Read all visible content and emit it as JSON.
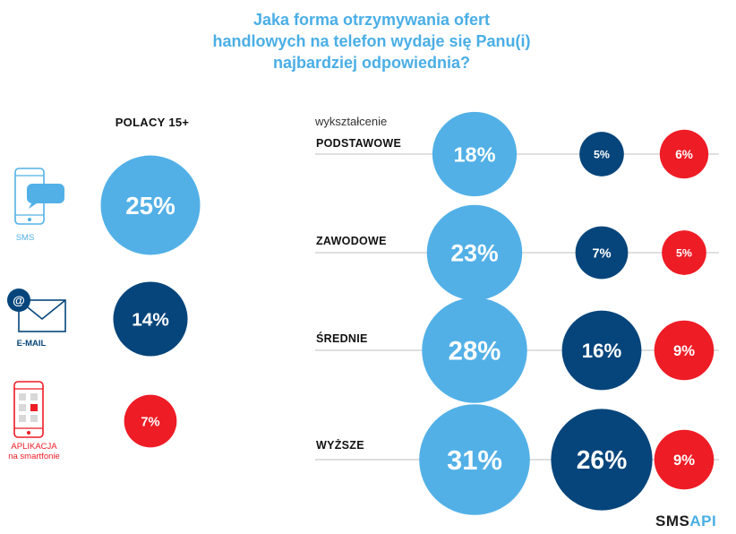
{
  "title_lines": [
    "Jaka forma otrzymywania ofert",
    "handlowych na telefon wydaje się Panu(i)",
    "najbardziej odpowiednia?"
  ],
  "left_panel": {
    "heading": "POLACY 15+",
    "channels": [
      {
        "label": "SMS",
        "sublabel": "",
        "icon": "smartphone-sms-icon"
      },
      {
        "label": "E-MAIL",
        "sublabel": "",
        "icon": "envelope-email-icon"
      },
      {
        "label": "APLIKACJA",
        "sublabel": "na smartfonie",
        "icon": "smartphone-app-icon"
      }
    ]
  },
  "right_panel": {
    "heading": "wykształcenie",
    "rows": [
      "PODSTAWOWE",
      "ZAWODOWE",
      "ŚREDNIE",
      "WYŻSZE"
    ]
  },
  "logo": {
    "part1": "SMS",
    "part2": "API"
  },
  "colors": {
    "sms": "#52b0e7",
    "email": "#06457b",
    "app": "#ee1c25",
    "text": "#111111",
    "title": "#4aaee6"
  },
  "chart_data": [
    {
      "type": "bubble",
      "title": "POLACY 15+",
      "categories": [
        "SMS",
        "E-MAIL",
        "APLIKACJA na smartfonie"
      ],
      "values": [
        25,
        14,
        7
      ],
      "labels": [
        "25%",
        "14%",
        "7%"
      ],
      "unit": "%"
    },
    {
      "type": "bubble",
      "title": "wykształcenie",
      "categories": [
        "PODSTAWOWE",
        "ZAWODOWE",
        "ŚREDNIE",
        "WYŻSZE"
      ],
      "series": [
        {
          "name": "SMS",
          "values": [
            18,
            23,
            28,
            31
          ],
          "labels": [
            "18%",
            "23%",
            "28%",
            "31%"
          ]
        },
        {
          "name": "E-MAIL",
          "values": [
            5,
            7,
            16,
            26
          ],
          "labels": [
            "5%",
            "7%",
            "16%",
            "26%"
          ]
        },
        {
          "name": "APLIKACJA na smartfonie",
          "values": [
            6,
            5,
            9,
            9
          ],
          "labels": [
            "6%",
            "5%",
            "9%",
            "9%"
          ]
        }
      ],
      "unit": "%"
    }
  ]
}
